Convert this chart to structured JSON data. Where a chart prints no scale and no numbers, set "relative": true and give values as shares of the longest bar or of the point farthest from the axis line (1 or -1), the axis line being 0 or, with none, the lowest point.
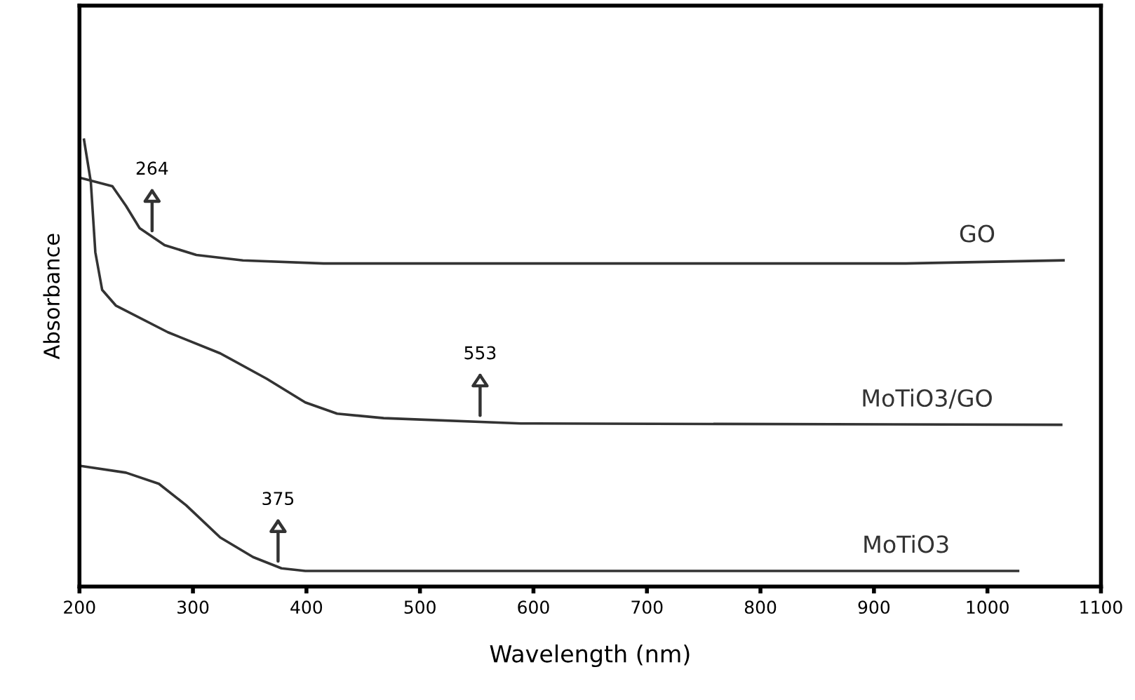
{
  "chart_data": {
    "type": "line",
    "relative": true,
    "xlabel": "Wavelength (nm)",
    "ylabel": "Absorbance",
    "xlim": [
      200,
      1100
    ],
    "xticks": [
      200,
      300,
      400,
      500,
      600,
      700,
      800,
      900,
      1000,
      1100
    ],
    "grid": false,
    "marker": "none",
    "line_style": "solid",
    "tick_labels": "x",
    "series": [
      {
        "name": "GO",
        "color": "#333333",
        "x": [
          200,
          229,
          241,
          253,
          275,
          303,
          344,
          415,
          928,
          1067
        ],
        "values": [
          0.915,
          0.896,
          0.852,
          0.802,
          0.764,
          0.742,
          0.73,
          0.723,
          0.723,
          0.73
        ]
      },
      {
        "name": "MoTiO3/GO",
        "color": "#333333",
        "x": [
          204,
          210,
          214,
          220,
          232,
          278,
          324,
          365,
          399,
          427,
          468,
          589,
          1065
        ],
        "values": [
          1.0,
          0.906,
          0.748,
          0.664,
          0.629,
          0.569,
          0.522,
          0.465,
          0.412,
          0.387,
          0.377,
          0.365,
          0.362
        ]
      },
      {
        "name": "MoTiO3",
        "color": "#333333",
        "x": [
          201,
          241,
          270,
          294,
          324,
          353,
          378,
          399,
          1027
        ],
        "values": [
          0.27,
          0.255,
          0.23,
          0.182,
          0.11,
          0.066,
          0.041,
          0.035,
          0.035
        ]
      }
    ],
    "annotations": [
      {
        "text": "264",
        "x": 264,
        "y": 0.783
      },
      {
        "text": "553",
        "x": 553,
        "y": 0.37
      },
      {
        "text": "375",
        "x": 375,
        "y": 0.044
      }
    ]
  }
}
